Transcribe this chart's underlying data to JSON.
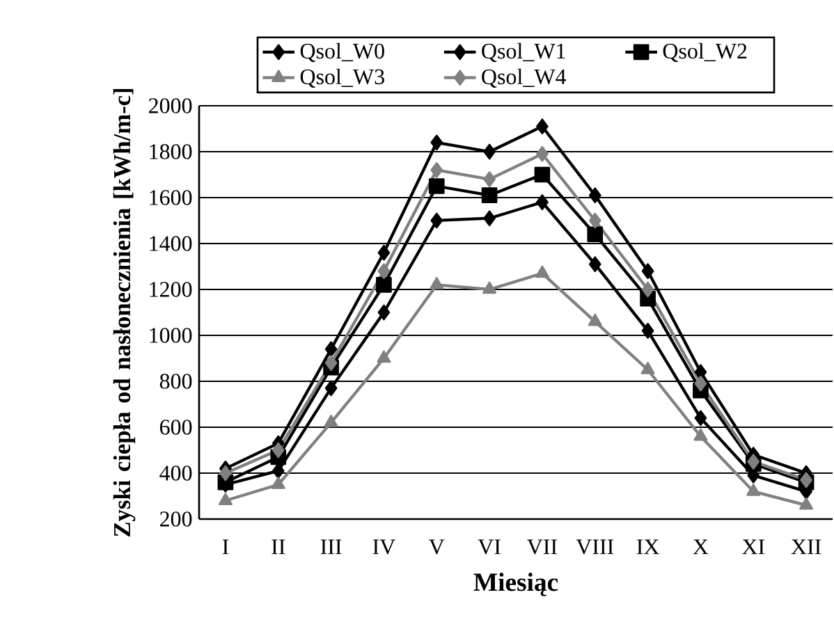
{
  "chart_data": {
    "type": "line",
    "xlabel": "Miesiąc",
    "ylabel": "Zyski ciepła od nasłonecznienia [kWh/m-c]",
    "categories": [
      "I",
      "II",
      "III",
      "IV",
      "V",
      "VI",
      "VII",
      "VIII",
      "IX",
      "X",
      "XI",
      "XII"
    ],
    "ylim": [
      200,
      2000
    ],
    "yticks": [
      200,
      400,
      600,
      800,
      1000,
      1200,
      1400,
      1600,
      1800,
      2000
    ],
    "grid": "y",
    "legend": "top",
    "line_style": "solid",
    "series": [
      {
        "name": "Qsol_W0",
        "color": "#000000",
        "marker": "diamond",
        "values": [
          350,
          410,
          770,
          1100,
          1500,
          1510,
          1580,
          1310,
          1020,
          640,
          390,
          320
        ]
      },
      {
        "name": "Qsol_W1",
        "color": "#000000",
        "marker": "diamond",
        "values": [
          420,
          530,
          940,
          1360,
          1840,
          1800,
          1910,
          1610,
          1280,
          840,
          480,
          400
        ]
      },
      {
        "name": "Qsol_W2",
        "color": "#000000",
        "marker": "square",
        "values": [
          360,
          470,
          860,
          1220,
          1650,
          1610,
          1700,
          1440,
          1160,
          760,
          440,
          360
        ]
      },
      {
        "name": "Qsol_W3",
        "color": "#808080",
        "marker": "triangle",
        "values": [
          280,
          350,
          620,
          900,
          1220,
          1200,
          1270,
          1060,
          850,
          560,
          320,
          260
        ]
      },
      {
        "name": "Qsol_W4",
        "color": "#808080",
        "marker": "diamond",
        "values": [
          400,
          500,
          880,
          1280,
          1720,
          1680,
          1790,
          1500,
          1200,
          790,
          450,
          370
        ]
      }
    ]
  }
}
